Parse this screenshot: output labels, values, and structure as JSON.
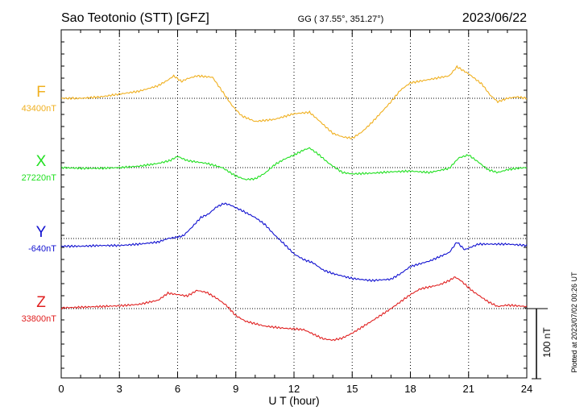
{
  "header": {
    "title": "Sao Teotonio (STT)  [GFZ]",
    "coords": "GG ( 37.55°, 351.27°)",
    "date": "2023/06/22"
  },
  "side_note": "Plotted at 2023/07/02 00:26 UT",
  "scale_label": "100 nT",
  "chart_data": {
    "type": "line",
    "title": "Sao Teotonio (STT)  [GFZ]",
    "xlabel": "U T (hour)",
    "ylabel": "",
    "xlim": [
      0,
      24
    ],
    "x_ticks": [
      0,
      3,
      6,
      9,
      12,
      15,
      18,
      21,
      24
    ],
    "x_tick_labels": [
      "0",
      "3",
      "6",
      "9",
      "12",
      "15",
      "18",
      "21",
      "24"
    ],
    "grid": true,
    "scale_bar_nT": 100,
    "series": [
      {
        "name": "F",
        "baseline_label": "43400nT",
        "baseline_nT": 43400,
        "color": "#f0b020",
        "x": [
          0,
          1,
          2,
          3,
          4,
          5,
          5.5,
          5.8,
          6.2,
          6.5,
          7,
          7.8,
          8.3,
          8.8,
          9.3,
          10,
          11,
          12,
          12.8,
          13.3,
          14,
          14.5,
          15,
          15.5,
          16,
          17,
          17.5,
          18,
          19,
          20,
          20.4,
          21,
          21.7,
          22.1,
          22.5,
          23,
          23.5,
          24
        ],
        "values": [
          43400,
          43400,
          43402,
          43406,
          43410,
          43418,
          43426,
          43432,
          43424,
          43428,
          43432,
          43430,
          43410,
          43390,
          43375,
          43367,
          43370,
          43378,
          43380,
          43368,
          43350,
          43345,
          43343,
          43352,
          43365,
          43395,
          43412,
          43422,
          43427,
          43432,
          43445,
          43435,
          43420,
          43405,
          43395,
          43400,
          43402,
          43400
        ]
      },
      {
        "name": "X",
        "baseline_label": "27220nT",
        "baseline_nT": 27220,
        "color": "#20e020",
        "x": [
          0,
          1,
          2,
          3,
          4,
          5,
          5.6,
          6,
          6.5,
          7,
          7.5,
          8.3,
          9,
          9.5,
          10,
          10.5,
          11,
          11.5,
          12,
          12.5,
          12.8,
          13.3,
          13.8,
          14.5,
          15,
          16,
          17,
          18,
          19,
          20,
          20.5,
          21,
          21.5,
          22,
          22.5,
          23,
          23.5,
          24
        ],
        "values": [
          27220,
          27219,
          27219,
          27220,
          27222,
          27226,
          27230,
          27236,
          27230,
          27228,
          27226,
          27220,
          27208,
          27203,
          27204,
          27212,
          27224,
          27232,
          27238,
          27245,
          27248,
          27238,
          27226,
          27213,
          27211,
          27212,
          27214,
          27215,
          27213,
          27219,
          27234,
          27238,
          27228,
          27217,
          27213,
          27217,
          27219,
          27220
        ]
      },
      {
        "name": "Y",
        "baseline_label": "-640nT",
        "baseline_nT": -640,
        "color": "#1010d0",
        "x": [
          0,
          1,
          2,
          3,
          4,
          5,
          5.5,
          6,
          6.3,
          6.7,
          7.2,
          7.6,
          8,
          8.4,
          8.7,
          9.3,
          10,
          10.5,
          11,
          11.5,
          12,
          12.5,
          13,
          13.5,
          14,
          15,
          16,
          17,
          17.5,
          18,
          19,
          19.5,
          20,
          20.4,
          20.8,
          21.5,
          22,
          23,
          24
        ],
        "values": [
          -651,
          -651,
          -650,
          -650,
          -648,
          -645,
          -640,
          -638,
          -636,
          -625,
          -610,
          -605,
          -595,
          -590,
          -592,
          -600,
          -610,
          -620,
          -635,
          -648,
          -662,
          -670,
          -675,
          -685,
          -690,
          -697,
          -700,
          -698,
          -690,
          -680,
          -672,
          -666,
          -660,
          -645,
          -656,
          -648,
          -648,
          -648,
          -650
        ]
      },
      {
        "name": "Z",
        "baseline_label": "33800nT",
        "baseline_nT": 33800,
        "color": "#e02020",
        "x": [
          0,
          1,
          2,
          3,
          4,
          5,
          5.5,
          6,
          6.5,
          7,
          7.5,
          8,
          8.5,
          9,
          9.5,
          10.5,
          11.5,
          12.5,
          13.5,
          14,
          14.5,
          15,
          16,
          17,
          17.5,
          18,
          18.5,
          19.5,
          20,
          20.3,
          20.6,
          21.2,
          22,
          22.5,
          23,
          24
        ],
        "values": [
          33801,
          33802,
          33803,
          33804,
          33806,
          33812,
          33822,
          33820,
          33818,
          33826,
          33823,
          33815,
          33805,
          33790,
          33782,
          33775,
          33772,
          33770,
          33757,
          33755,
          33758,
          33765,
          33782,
          33800,
          33810,
          33820,
          33828,
          33834,
          33840,
          33845,
          33840,
          33825,
          33810,
          33803,
          33805,
          33803
        ]
      }
    ]
  }
}
